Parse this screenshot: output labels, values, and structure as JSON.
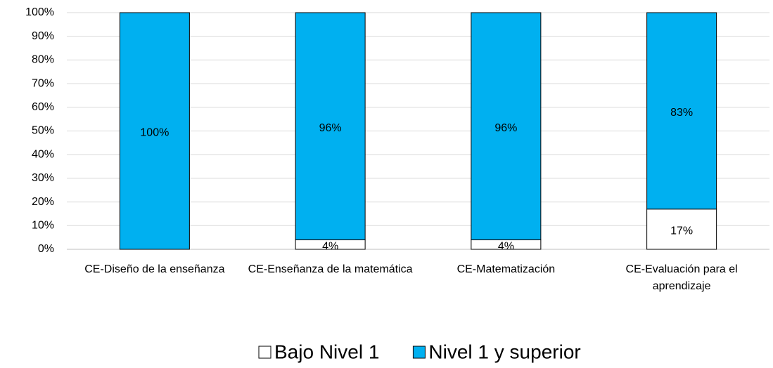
{
  "chart_data": {
    "type": "stacked_bar",
    "categories": [
      "CE-Diseño de la enseñanza",
      "CE-Enseñanza de la matemática",
      "CE-Matematización",
      "CE-Evaluación para el aprendizaje"
    ],
    "series": [
      {
        "name": "Bajo Nivel 1",
        "color": "#ffffff",
        "values": [
          0,
          4,
          4,
          17
        ],
        "value_labels": [
          null,
          "4%",
          "4%",
          "17%"
        ]
      },
      {
        "name": "Nivel 1 y superior",
        "color": "#00b0f0",
        "values": [
          100,
          96,
          96,
          83
        ],
        "value_labels": [
          "100%",
          "96%",
          "96%",
          "83%"
        ]
      }
    ],
    "ylim": [
      0,
      100
    ],
    "yticks": [
      {
        "value": 0,
        "label": "0%"
      },
      {
        "value": 10,
        "label": "10%"
      },
      {
        "value": 20,
        "label": "20%"
      },
      {
        "value": 30,
        "label": "30%"
      },
      {
        "value": 40,
        "label": "40%"
      },
      {
        "value": 50,
        "label": "50%"
      },
      {
        "value": 60,
        "label": "60%"
      },
      {
        "value": 70,
        "label": "70%"
      },
      {
        "value": 80,
        "label": "80%"
      },
      {
        "value": 90,
        "label": "90%"
      },
      {
        "value": 100,
        "label": "100%"
      }
    ],
    "grid": true,
    "legend": "bottom"
  }
}
